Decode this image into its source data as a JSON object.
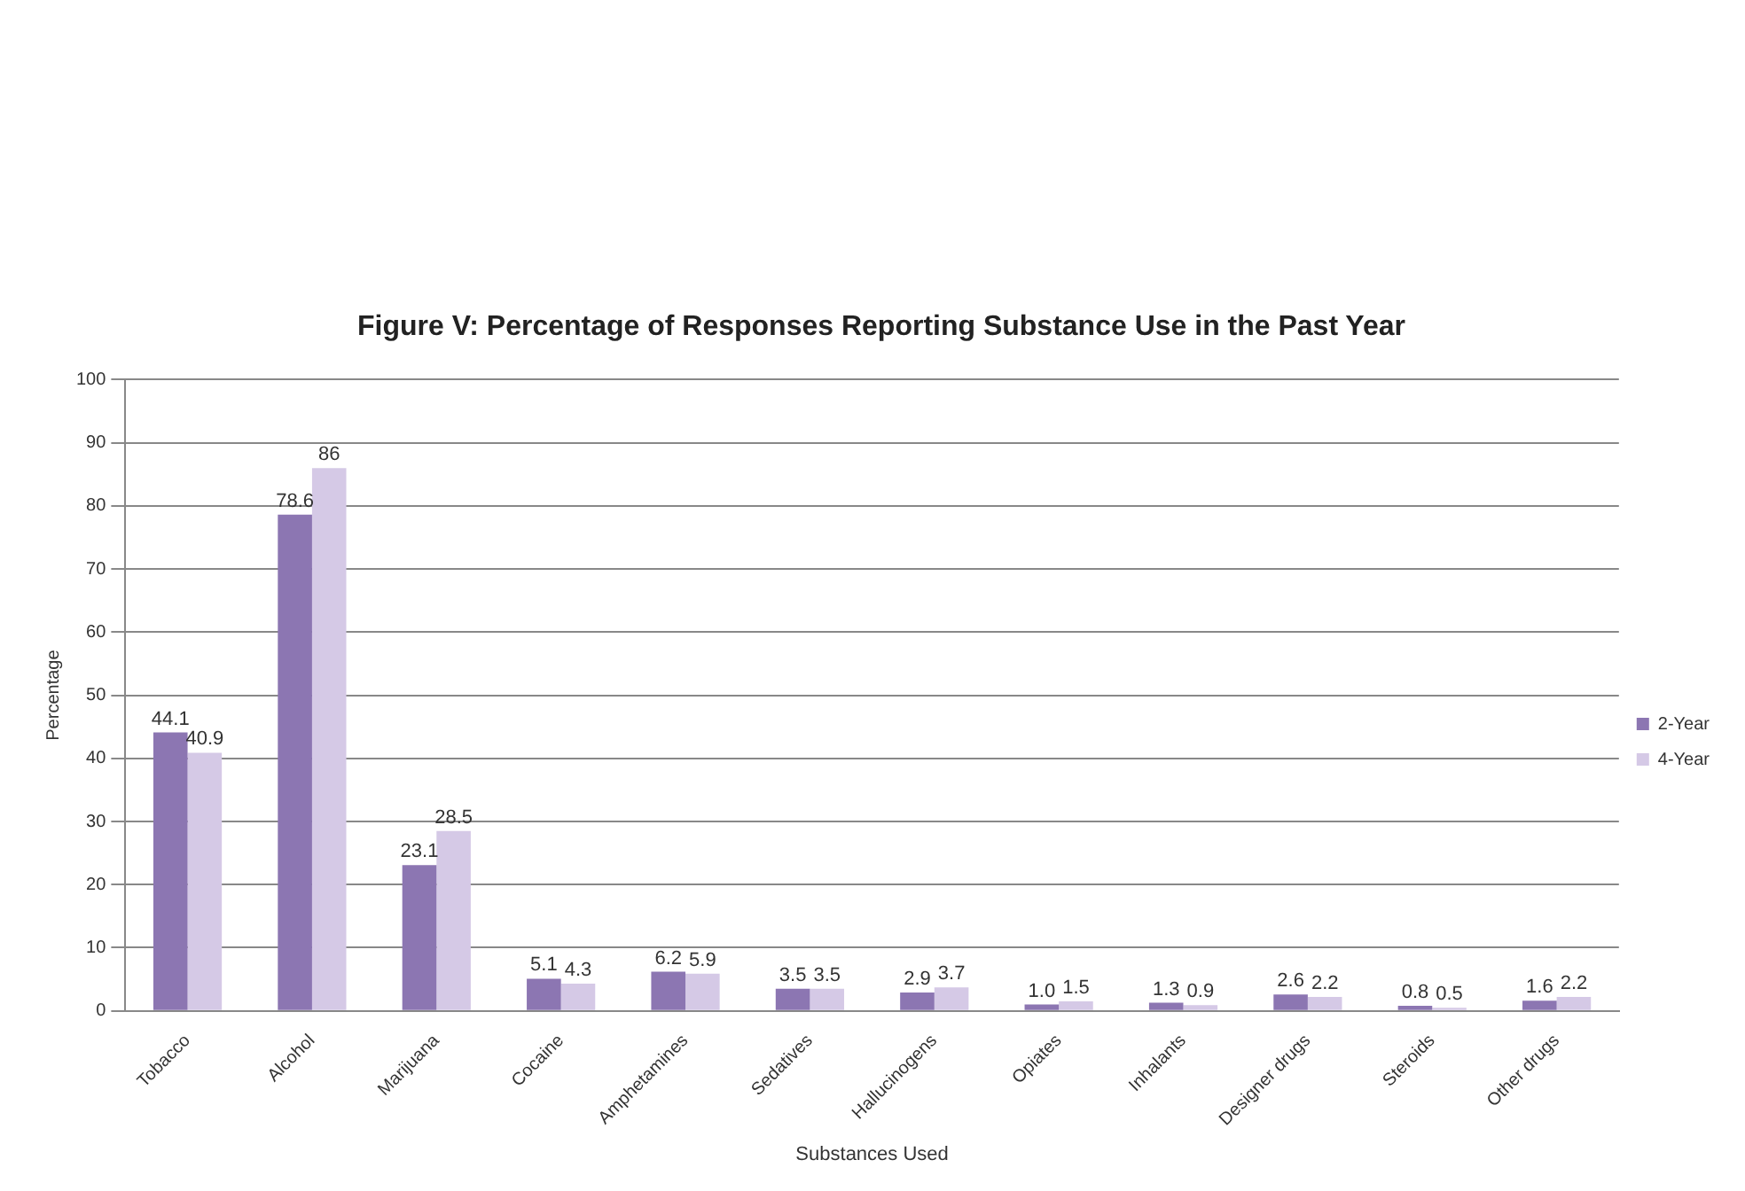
{
  "chart_data": {
    "type": "bar",
    "title": "Figure V: Percentage of Responses Reporting Substance Use in the Past Year",
    "xlabel": "Substances Used",
    "ylabel": "Percentage",
    "categories": [
      "Tobacco",
      "Alcohol",
      "Marijuana",
      "Cocaine",
      "Amphetamines",
      "Sedatives",
      "Hallucinogens",
      "Opiates",
      "Inhalants",
      "Designer drugs",
      "Steroids",
      "Other drugs"
    ],
    "series": [
      {
        "name": "2-Year",
        "color": "#8c76b2",
        "values": [
          44.1,
          78.6,
          23.1,
          5.1,
          6.2,
          3.5,
          2.9,
          1.0,
          1.3,
          2.6,
          0.8,
          1.6
        ],
        "value_labels": [
          "44.1",
          "78.6",
          "23.1",
          "5.1",
          "6.2",
          "3.5",
          "2.9",
          "1.0",
          "1.3",
          "2.6",
          "0.8",
          "1.6"
        ]
      },
      {
        "name": "4-Year",
        "color": "#d5c9e6",
        "values": [
          40.9,
          86,
          28.5,
          4.3,
          5.9,
          3.5,
          3.7,
          1.5,
          0.9,
          2.2,
          0.5,
          2.2
        ],
        "value_labels": [
          "40.9",
          "86",
          "28.5",
          "4.3",
          "5.9",
          "3.5",
          "3.7",
          "1.5",
          "0.9",
          "2.2",
          "0.5",
          "2.2"
        ]
      }
    ],
    "ylim": [
      0,
      100
    ],
    "yticks": [
      0,
      10,
      20,
      30,
      40,
      50,
      60,
      70,
      80,
      90,
      100
    ],
    "grid": "y",
    "legend": "right"
  }
}
